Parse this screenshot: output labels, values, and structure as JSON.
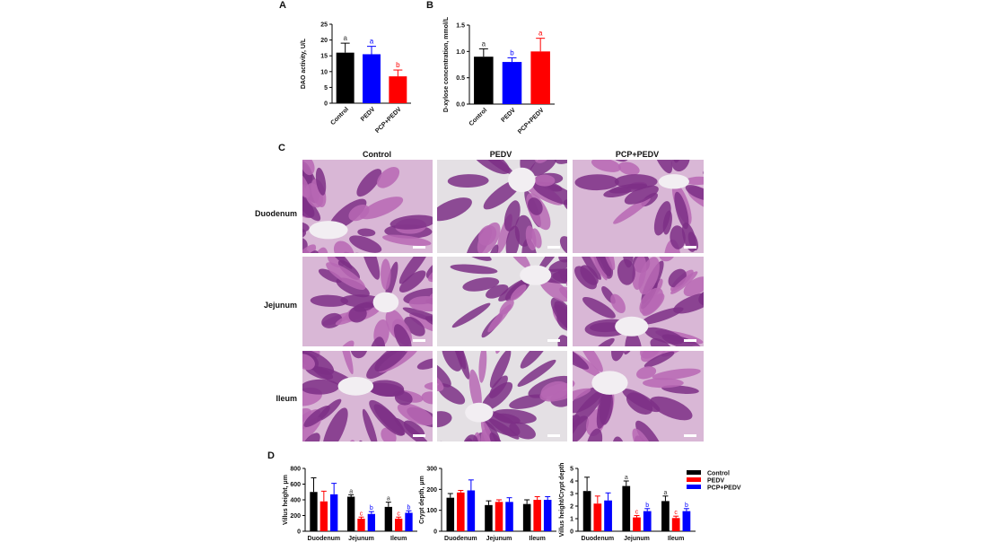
{
  "panel_labels": [
    "A",
    "B",
    "C",
    "D"
  ],
  "histology": {
    "columns": [
      "Control",
      "PEDV",
      "PCP+PEDV"
    ],
    "rows": [
      "Duodenum",
      "Jejunum",
      "Ileum"
    ]
  },
  "chart_data": [
    {
      "type": "bar",
      "y_label": "DAO activity, U/L",
      "categories": [
        "Control",
        "PEDV",
        "PCP+PEDV"
      ],
      "values": [
        16,
        15.5,
        8.5
      ],
      "errors": [
        3,
        2.5,
        2
      ],
      "letters": [
        "a",
        "a",
        "b"
      ],
      "colors": [
        "#000000",
        "#0000ff",
        "#ff0000"
      ],
      "ylim": [
        0,
        25
      ],
      "yticks": [
        0,
        5,
        10,
        15,
        20,
        25
      ]
    },
    {
      "type": "bar",
      "y_label": "D-xylose concentration, mmol/L",
      "categories": [
        "Control",
        "PEDV",
        "PCP+PEDV"
      ],
      "values": [
        0.9,
        0.8,
        1.0
      ],
      "errors": [
        0.15,
        0.08,
        0.25
      ],
      "letters": [
        "a",
        "b",
        "a"
      ],
      "colors": [
        "#000000",
        "#0000ff",
        "#ff0000"
      ],
      "ylim": [
        0,
        1.5
      ],
      "yticks": [
        {
          "value": 0,
          "label": "0.0"
        },
        {
          "value": 0.5,
          "label": "0.5"
        },
        {
          "value": 1,
          "label": "1.0"
        },
        {
          "value": 1.5,
          "label": "1.5"
        }
      ]
    },
    {
      "type": "grouped_bar",
      "y_label": "Villus height, μm",
      "categories": [
        "Duodenum",
        "Jejunum",
        "Ileum"
      ],
      "series": [
        {
          "color": "#000000",
          "values": [
            500,
            440,
            310
          ],
          "errors": [
            180,
            25,
            60
          ],
          "letters": [
            null,
            "a",
            "a"
          ]
        },
        {
          "color": "#ff0000",
          "values": [
            380,
            160,
            160
          ],
          "errors": [
            130,
            20,
            20
          ],
          "letters": [
            null,
            "c",
            "c"
          ]
        },
        {
          "color": "#0000ff",
          "values": [
            470,
            220,
            235
          ],
          "errors": [
            140,
            30,
            25
          ],
          "letters": [
            null,
            "b",
            "b"
          ]
        }
      ],
      "ylim": [
        0,
        800
      ],
      "yticks": [
        0,
        200,
        400,
        600,
        800
      ]
    },
    {
      "type": "grouped_bar",
      "y_label": "Crypt depth, μm",
      "categories": [
        "Duodenum",
        "Jejunum",
        "Ileum"
      ],
      "series": [
        {
          "color": "#000000",
          "values": [
            160,
            125,
            130
          ],
          "errors": [
            20,
            20,
            20
          ]
        },
        {
          "color": "#ff0000",
          "values": [
            185,
            140,
            150
          ],
          "errors": [
            10,
            10,
            15
          ]
        },
        {
          "color": "#0000ff",
          "values": [
            195,
            140,
            150
          ],
          "errors": [
            50,
            20,
            15
          ]
        }
      ],
      "ylim": [
        0,
        300
      ],
      "yticks": [
        0,
        100,
        200,
        300
      ]
    },
    {
      "type": "grouped_bar",
      "y_label": "Villus height/Crypt depth",
      "categories": [
        "Duodenum",
        "Jejunum",
        "Ileum"
      ],
      "series": [
        {
          "name": "Control",
          "color": "#000000",
          "values": [
            3.2,
            3.6,
            2.4
          ],
          "errors": [
            1.1,
            0.4,
            0.4
          ],
          "letters": [
            null,
            "a",
            "a"
          ]
        },
        {
          "name": "PEDV",
          "color": "#ff0000",
          "values": [
            2.2,
            1.1,
            1.05
          ],
          "errors": [
            0.6,
            0.15,
            0.15
          ],
          "letters": [
            null,
            "c",
            "c"
          ]
        },
        {
          "name": "PCP+PEDV",
          "color": "#0000ff",
          "values": [
            2.45,
            1.6,
            1.6
          ],
          "errors": [
            0.6,
            0.2,
            0.2
          ],
          "letters": [
            null,
            "b",
            "b"
          ]
        }
      ],
      "ylim": [
        0,
        5
      ],
      "yticks": [
        0,
        1,
        2,
        3,
        4,
        5
      ],
      "legend": "right"
    }
  ]
}
